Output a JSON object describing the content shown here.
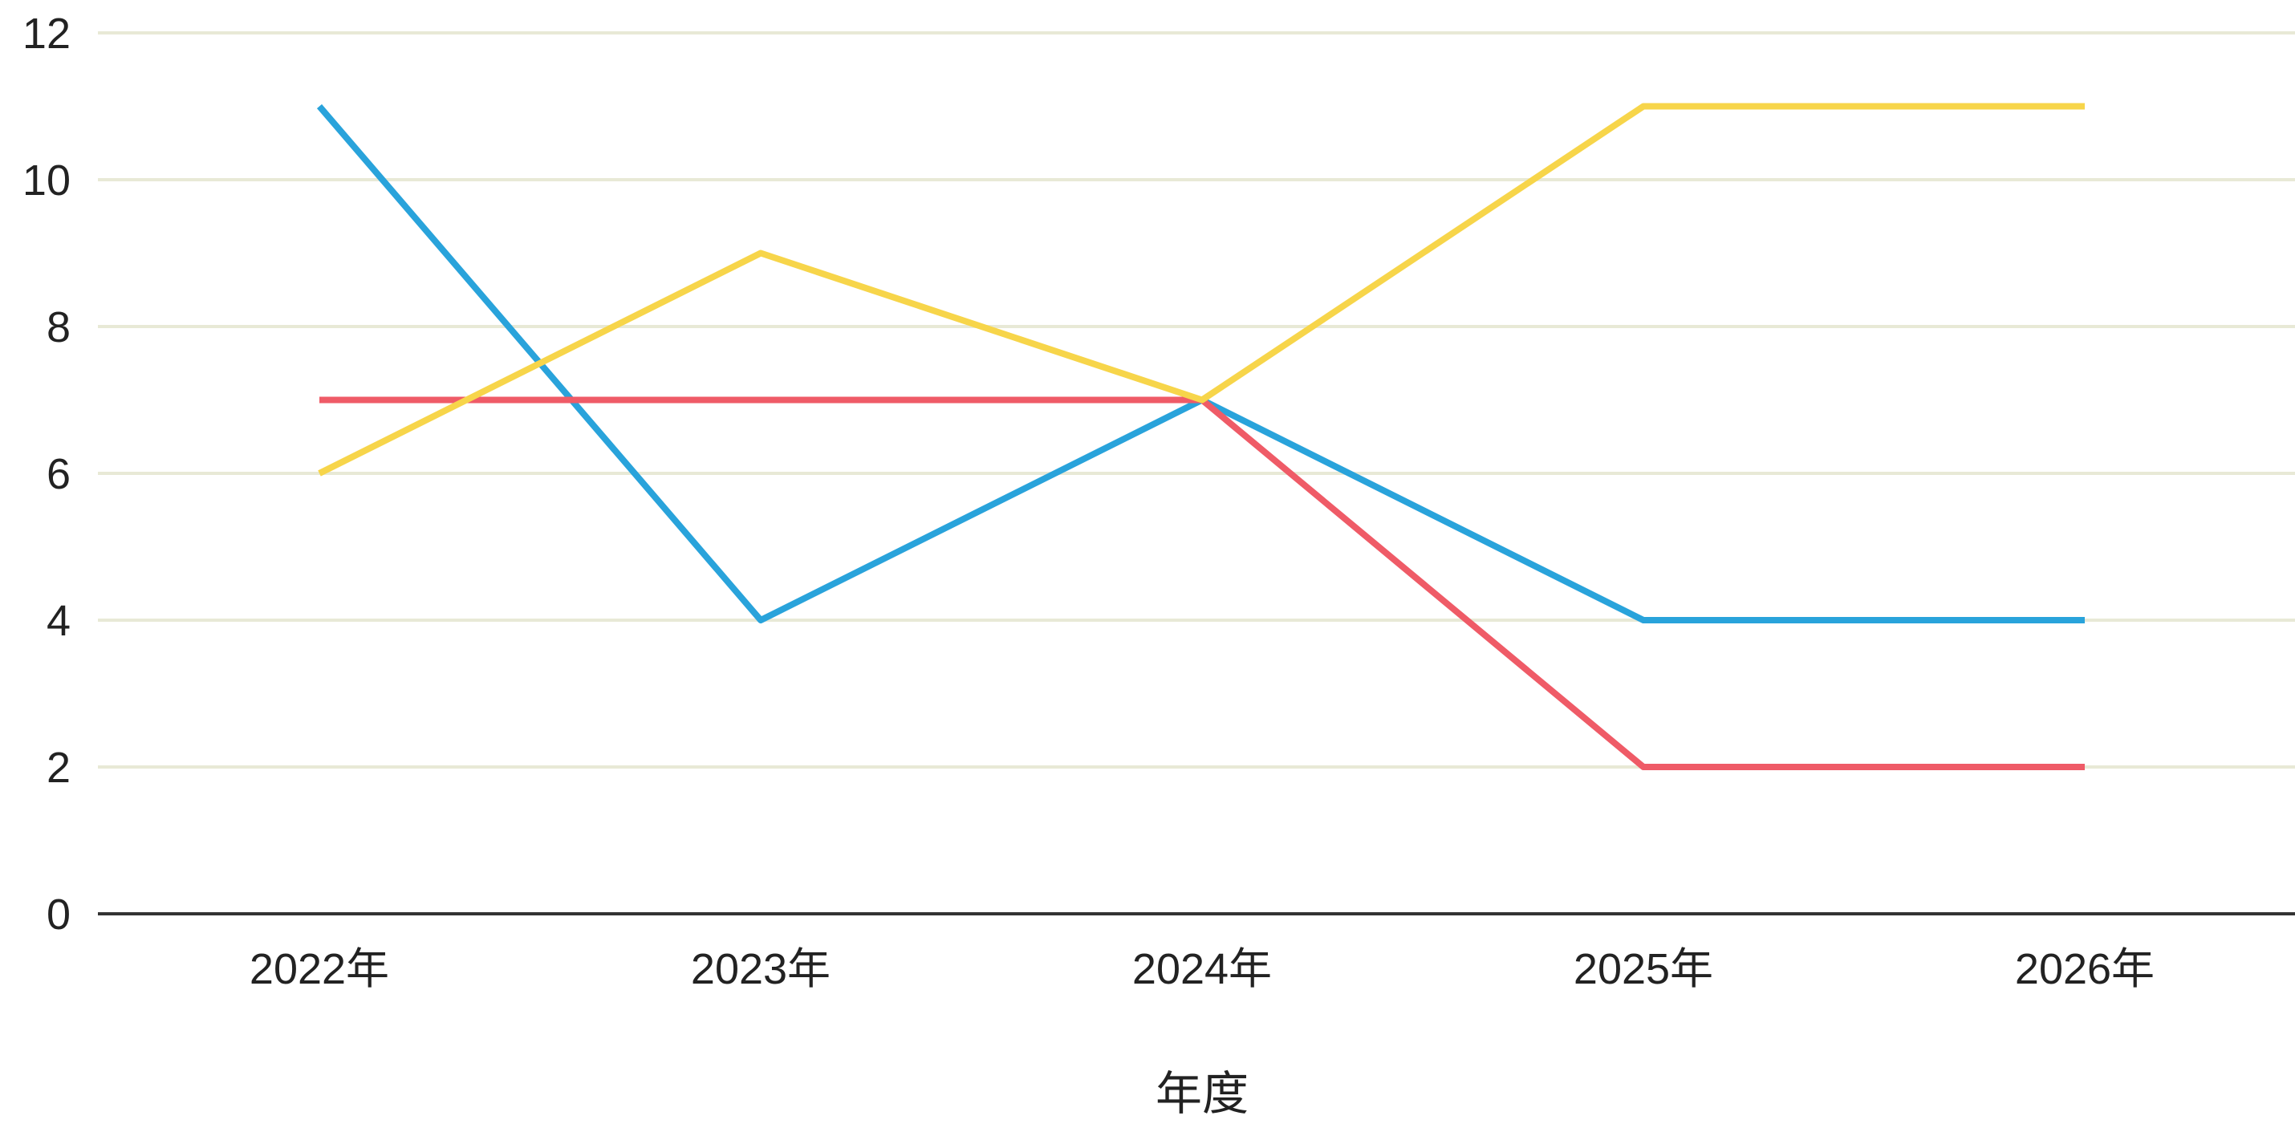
{
  "chart_data": {
    "type": "line",
    "title": "",
    "xlabel": "年度",
    "ylabel": "",
    "categories": [
      "2022年",
      "2023年",
      "2024年",
      "2025年",
      "2026年"
    ],
    "ylim": [
      0,
      12
    ],
    "yticks": [
      0,
      2,
      4,
      6,
      8,
      10,
      12
    ],
    "grid": true,
    "legend": "none",
    "series": [
      {
        "color": "#29a3db",
        "values": [
          11,
          4,
          7,
          4,
          4
        ]
      },
      {
        "color": "#ef5b67",
        "values": [
          7,
          7,
          7,
          2,
          2
        ]
      },
      {
        "color": "#f7d54a",
        "values": [
          6,
          9,
          7,
          11,
          11
        ]
      }
    ]
  }
}
